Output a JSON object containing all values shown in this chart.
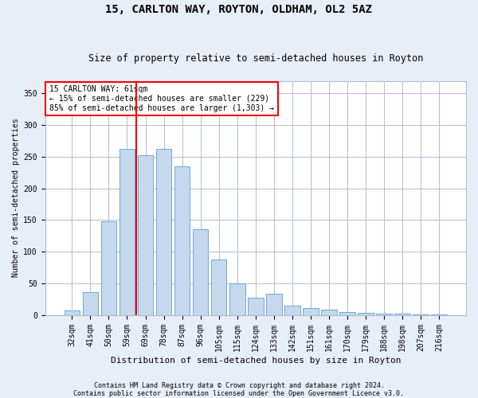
{
  "title": "15, CARLTON WAY, ROYTON, OLDHAM, OL2 5AZ",
  "subtitle": "Size of property relative to semi-detached houses in Royton",
  "xlabel": "Distribution of semi-detached houses by size in Royton",
  "ylabel": "Number of semi-detached properties",
  "categories": [
    "32sqm",
    "41sqm",
    "50sqm",
    "59sqm",
    "69sqm",
    "78sqm",
    "87sqm",
    "96sqm",
    "105sqm",
    "115sqm",
    "124sqm",
    "133sqm",
    "142sqm",
    "151sqm",
    "161sqm",
    "170sqm",
    "179sqm",
    "188sqm",
    "198sqm",
    "207sqm",
    "216sqm"
  ],
  "values": [
    7,
    36,
    148,
    262,
    252,
    262,
    235,
    135,
    87,
    50,
    27,
    33,
    14,
    11,
    8,
    5,
    3,
    2,
    2,
    1,
    1
  ],
  "bar_color": "#c5d8ee",
  "bar_edge_color": "#6aaad4",
  "vline_index": 3,
  "vline_color": "red",
  "annotation_text": "15 CARLTON WAY: 61sqm\n← 15% of semi-detached houses are smaller (229)\n85% of semi-detached houses are larger (1,303) →",
  "annotation_box_color": "white",
  "annotation_box_edge": "red",
  "ylim": [
    0,
    370
  ],
  "yticks": [
    0,
    50,
    100,
    150,
    200,
    250,
    300,
    350
  ],
  "footnote1": "Contains HM Land Registry data © Crown copyright and database right 2024.",
  "footnote2": "Contains public sector information licensed under the Open Government Licence v3.0.",
  "bg_color": "#e8eef8",
  "plot_bg_color": "#ffffff",
  "grid_color": "#b0bcd0",
  "title_fontsize": 10,
  "subtitle_fontsize": 8.5,
  "xlabel_fontsize": 8,
  "ylabel_fontsize": 7,
  "tick_fontsize": 7,
  "annotation_fontsize": 7
}
